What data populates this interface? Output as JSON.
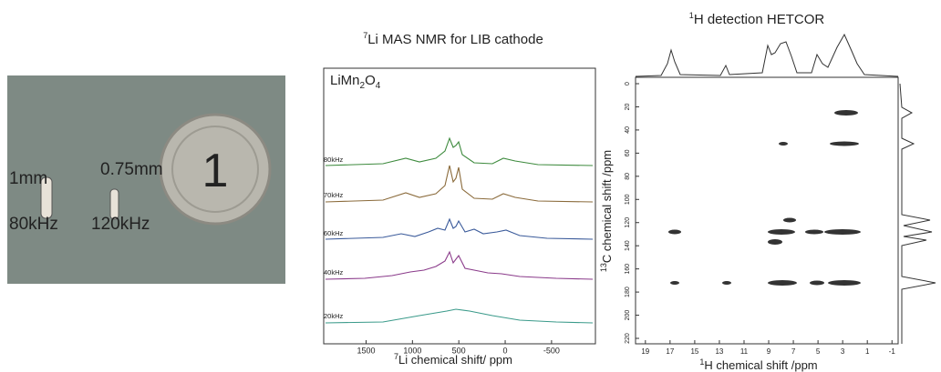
{
  "photo": {
    "labels": [
      "1mm",
      "0.75mm",
      "80kHz",
      "120kHz"
    ]
  },
  "spectra": {
    "title": {
      "sup": "7",
      "text": "Li MAS NMR for LIB cathode"
    },
    "sample": [
      "LiMn",
      "2",
      "O",
      "4"
    ],
    "rates": [
      "80kHz",
      "70kHz",
      "60kHz",
      "40kHz",
      "20kHz"
    ],
    "xlim": [
      1957,
      -973
    ],
    "xticks": [
      1500,
      1000,
      500,
      0,
      -500
    ],
    "xlabel": {
      "sup": "7",
      "text": "Li chemical shift/ ppm"
    }
  },
  "hetcor": {
    "title": {
      "sup": "1",
      "text": "H detection HETCOR"
    },
    "xlim": [
      19.8,
      -1.5
    ],
    "xticks": [
      19,
      17,
      15,
      13,
      11,
      9,
      7,
      5,
      3,
      1,
      -1
    ],
    "ylim": [
      -5.5,
      224.7
    ],
    "yticks": [
      0,
      20,
      40,
      60,
      80,
      100,
      120,
      140,
      160,
      180,
      200,
      220
    ],
    "xlabel": {
      "sup": "1",
      "text": "H chemical shift /ppm"
    },
    "ylabel": {
      "sup": "13",
      "text": "C chemical shift /ppm"
    }
  }
}
